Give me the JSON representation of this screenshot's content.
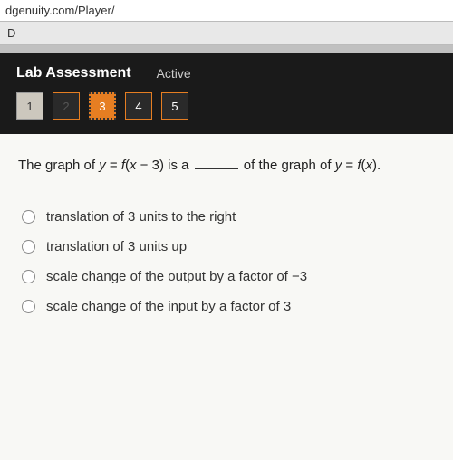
{
  "browser": {
    "url_text": "dgenuity.com/Player/",
    "tab_letter": "D"
  },
  "header": {
    "title": "Lab Assessment",
    "status": "Active",
    "questions": [
      {
        "n": "1",
        "state": "answered"
      },
      {
        "n": "2",
        "state": "dim"
      },
      {
        "n": "3",
        "state": "current"
      },
      {
        "n": "4",
        "state": "normal"
      },
      {
        "n": "5",
        "state": "normal"
      }
    ]
  },
  "question": {
    "pre": "The graph of ",
    "eq1_y": "y",
    "eq1_eq": " = ",
    "eq1_f": "f",
    "eq1_paren": "(",
    "eq1_x": "x",
    "eq1_rest": " − 3) is a ",
    "post1": " of the graph of ",
    "eq2_y": "y",
    "eq2_eq": " = ",
    "eq2_f": "f",
    "eq2_paren": "(",
    "eq2_x": "x",
    "eq2_close": ").",
    "options": [
      "translation of 3 units to the right",
      "translation of 3 units up",
      "scale change of the output by a factor of −3",
      "scale change of the input by a factor of 3"
    ]
  },
  "colors": {
    "accent": "#e67e22",
    "dark_bg": "#1a1a1a",
    "content_bg": "#f8f8f5"
  }
}
